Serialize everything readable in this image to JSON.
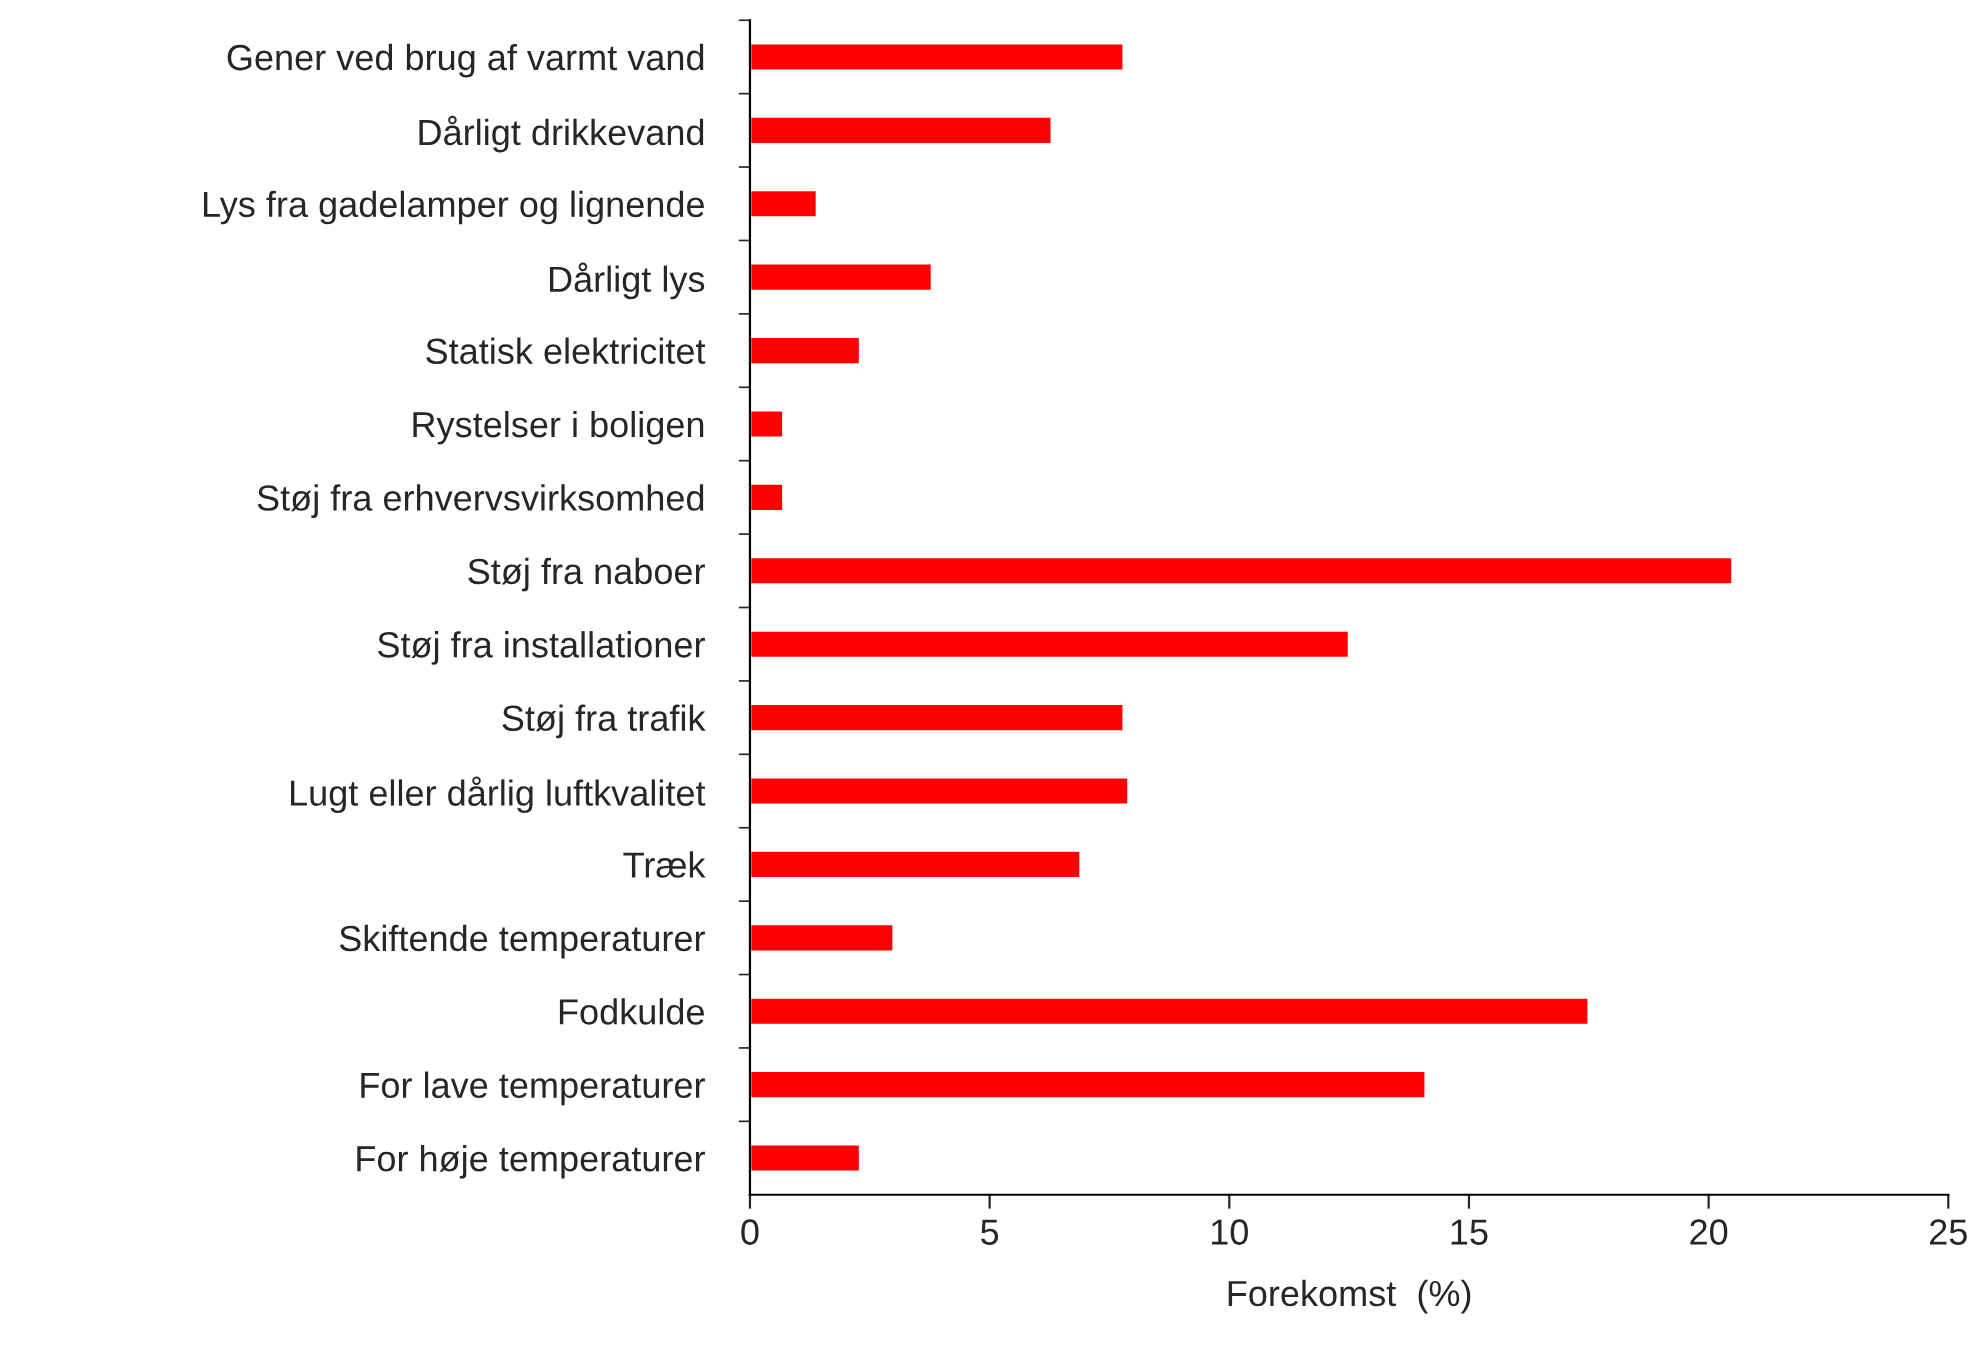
{
  "chart_data": {
    "type": "bar",
    "orientation": "horizontal",
    "xlabel": "Forekomst  (%)",
    "categories": [
      "Gener ved brug af varmt vand",
      "Dårligt drikkevand",
      "Lys fra gadelamper og lignende",
      "Dårligt lys",
      "Statisk elektricitet",
      "Rystelser i boligen",
      "Støj fra erhvervsvirksomhed",
      "Støj fra naboer",
      "Støj fra installationer",
      "Støj fra trafik",
      "Lugt eller dårlig luftkvalitet",
      "Træk",
      "Skiftende temperaturer",
      "Fodkulde",
      "For lave temperaturer",
      "For høje temperaturer"
    ],
    "values": [
      7.8,
      6.3,
      1.4,
      3.8,
      2.3,
      0.7,
      0.7,
      20.5,
      12.5,
      7.8,
      7.9,
      6.9,
      3.0,
      17.5,
      14.1,
      2.3
    ],
    "color": "#ff0000",
    "xlim": [
      0,
      25
    ],
    "xticks": [
      0,
      5,
      10,
      15,
      20,
      25
    ],
    "grid": false,
    "legend": false
  }
}
